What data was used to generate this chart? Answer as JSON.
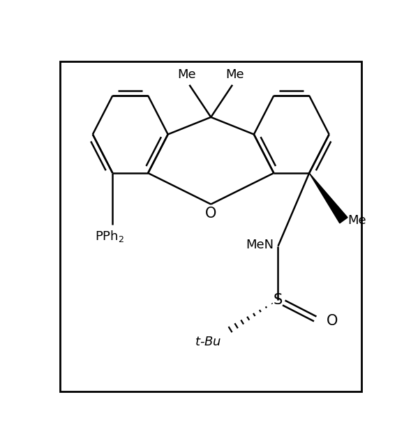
{
  "background_color": "#ffffff",
  "border_color": "#000000",
  "line_color": "#000000",
  "line_width": 1.8,
  "font_size": 13,
  "fig_width": 5.89,
  "fig_height": 6.42,
  "xlim": [
    0,
    589
  ],
  "ylim": [
    0,
    642
  ]
}
